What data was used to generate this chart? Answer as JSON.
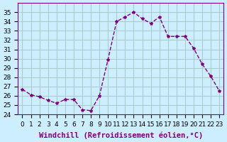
{
  "x": [
    0,
    1,
    2,
    3,
    4,
    5,
    6,
    7,
    8,
    9,
    10,
    11,
    12,
    13,
    14,
    15,
    16,
    17,
    18,
    19,
    20,
    21,
    22,
    23
  ],
  "y": [
    26.7,
    26.1,
    25.9,
    25.5,
    25.2,
    25.6,
    25.6,
    24.5,
    24.4,
    26.0,
    29.9,
    34.0,
    34.5,
    35.0,
    34.3,
    33.8,
    34.5,
    32.4,
    32.4,
    32.4,
    31.1,
    29.4,
    28.1,
    26.5
  ],
  "line_color": "#800080",
  "marker": "*",
  "marker_size": 3,
  "bg_color": "#cceeff",
  "grid_color": "#aacccc",
  "xlim": [
    -0.5,
    23.5
  ],
  "ylim": [
    24,
    36
  ],
  "yticks": [
    24,
    25,
    26,
    27,
    28,
    29,
    30,
    31,
    32,
    33,
    34,
    35
  ],
  "xtick_labels": [
    "0",
    "1",
    "2",
    "3",
    "4",
    "5",
    "6",
    "7",
    "8",
    "9",
    "10",
    "11",
    "12",
    "13",
    "14",
    "15",
    "16",
    "17",
    "18",
    "19",
    "20",
    "21",
    "22",
    "23"
  ],
  "xlabel": "Windchill (Refroidissement éolien,°C)",
  "xlabel_fontsize": 7.5,
  "tick_fontsize": 6.5,
  "title": ""
}
